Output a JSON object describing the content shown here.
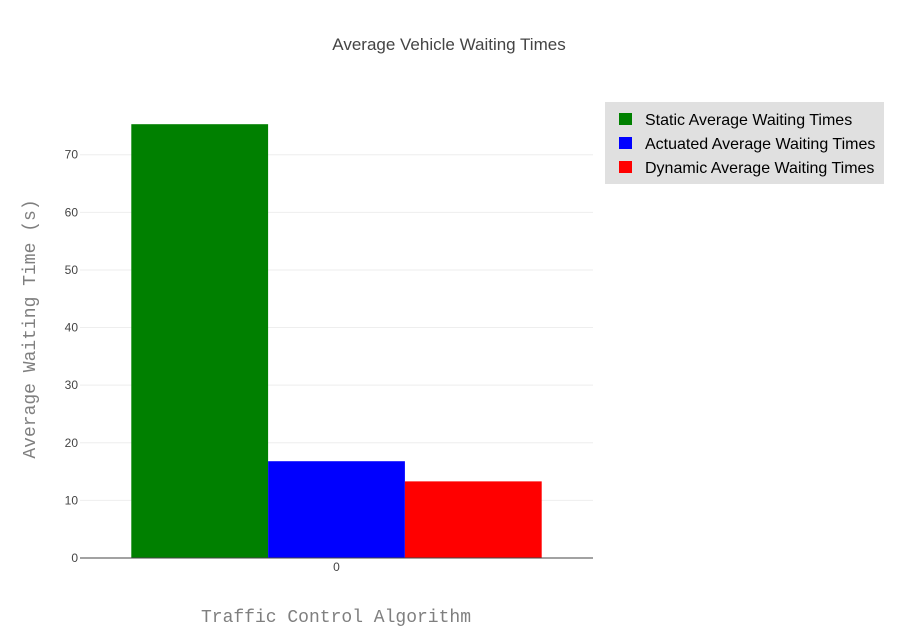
{
  "chart_data": {
    "type": "bar",
    "title": "Average Vehicle Waiting Times",
    "xlabel": "Traffic Control Algorithm",
    "ylabel": "Average Waiting Time (s)",
    "categories": [
      "0"
    ],
    "yticks": [
      0,
      10,
      20,
      30,
      40,
      50,
      60,
      70
    ],
    "ylim": [
      0,
      79.5
    ],
    "grid": true,
    "legend_position": "top-right",
    "series": [
      {
        "name": "Static Average Waiting Times",
        "color": "#008000",
        "values": [
          75.3
        ]
      },
      {
        "name": "Actuated Average Waiting Times",
        "color": "#0000ff",
        "values": [
          16.8
        ]
      },
      {
        "name": "Dynamic Average Waiting Times",
        "color": "#ff0000",
        "values": [
          13.3
        ]
      }
    ]
  }
}
